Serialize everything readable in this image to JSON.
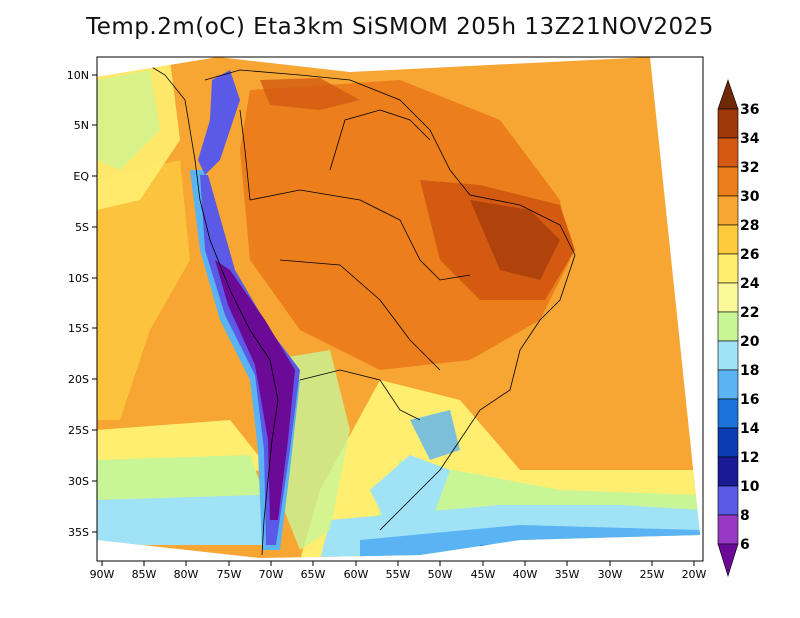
{
  "title": "Temp.2m(oC) Eta3km SiSMOM 205h 13Z21NOV2025",
  "map": {
    "variable": "Temperature at 2m",
    "units": "oC",
    "model": "Eta3km SiSMOM",
    "forecast_hour": "205h",
    "valid_time": "13Z21NOV2025",
    "lat_labels": [
      "10N",
      "5N",
      "EQ",
      "5S",
      "10S",
      "15S",
      "20S",
      "25S",
      "30S",
      "35S"
    ],
    "lon_labels": [
      "90W",
      "85W",
      "80W",
      "75W",
      "70W",
      "65W",
      "60W",
      "55W",
      "50W",
      "45W",
      "40W",
      "35W",
      "30W",
      "25W",
      "20W"
    ]
  },
  "colorbar": {
    "labels": [
      "36",
      "34",
      "32",
      "30",
      "28",
      "26",
      "24",
      "22",
      "20",
      "18",
      "16",
      "14",
      "12",
      "10",
      "8",
      "6"
    ],
    "colors": [
      "#6e2a06",
      "#a1380a",
      "#d45a12",
      "#ec7e1c",
      "#f7a634",
      "#fdca3e",
      "#ffee70",
      "#fafa9a",
      "#c8f596",
      "#a0e2f6",
      "#5ab4f3",
      "#1c74da",
      "#0c3cb2",
      "#1a1a94",
      "#5a5ae6",
      "#9a38c6",
      "#6a0a96"
    ]
  }
}
